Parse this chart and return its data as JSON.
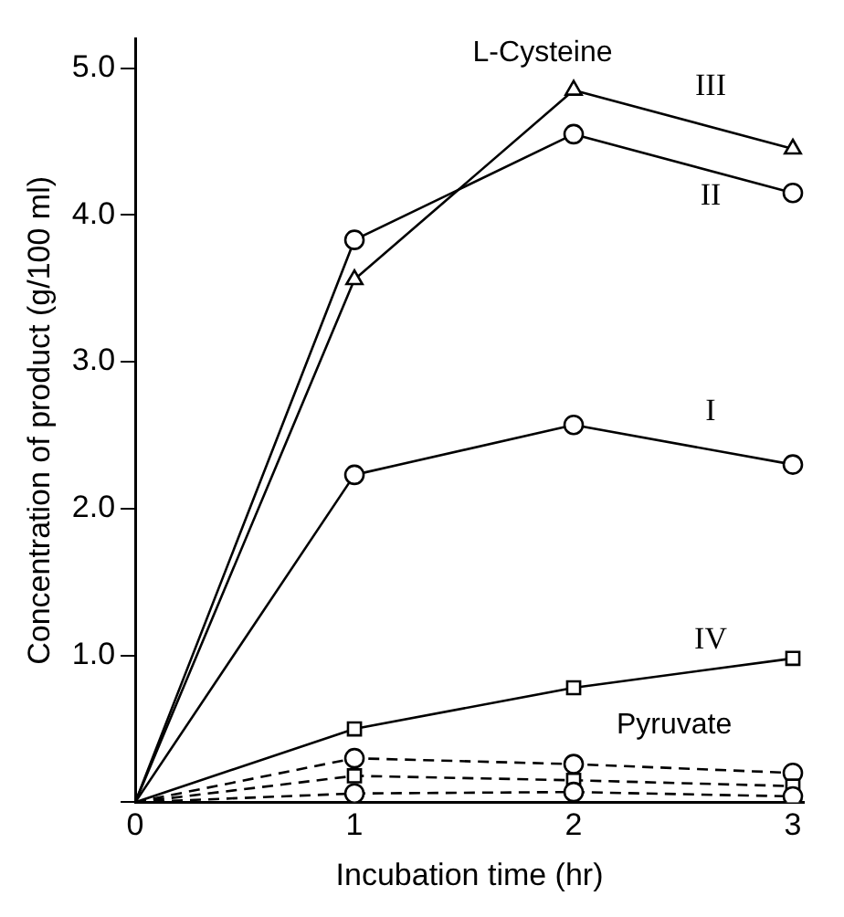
{
  "chart_data": {
    "type": "line",
    "xlabel": "Incubation time (hr)",
    "ylabel": "Concentration of product (g/100 ml)",
    "x": [
      0,
      1,
      2,
      3
    ],
    "series": [
      {
        "name": "III",
        "color": "#000000",
        "marker": "triangle",
        "line_style": "solid",
        "values": [
          0,
          3.56,
          4.85,
          4.45
        ]
      },
      {
        "name": "II",
        "color": "#000000",
        "marker": "circle",
        "line_style": "solid",
        "values": [
          0,
          3.83,
          4.55,
          4.15
        ]
      },
      {
        "name": "I",
        "color": "#000000",
        "marker": "circle",
        "line_style": "solid",
        "values": [
          0,
          2.23,
          2.57,
          2.3
        ]
      },
      {
        "name": "IV",
        "color": "#000000",
        "marker": "square",
        "line_style": "solid",
        "values": [
          0,
          0.5,
          0.78,
          0.98
        ]
      },
      {
        "color": "#000000",
        "marker": "circle",
        "line_style": "dashed",
        "values": [
          0,
          0.3,
          0.26,
          0.2
        ]
      },
      {
        "color": "#000000",
        "marker": "square",
        "line_style": "dashed",
        "values": [
          0,
          0.18,
          0.15,
          0.11
        ]
      },
      {
        "color": "#000000",
        "marker": "circle",
        "line_style": "dashed",
        "values": [
          0,
          0.06,
          0.07,
          0.04
        ]
      }
    ],
    "annotations": [
      "L-Cysteine",
      "Pyruvate"
    ],
    "xlim": [
      0,
      3.05
    ],
    "xticks": [
      0,
      1,
      2,
      3
    ],
    "ylim": [
      0,
      5.2
    ],
    "yticks": [
      {
        "value": 0,
        "label": null
      },
      {
        "value": 1,
        "label": "1.0"
      },
      {
        "value": 2,
        "label": "2.0"
      },
      {
        "value": 3,
        "label": "3.0"
      },
      {
        "value": 4,
        "label": "4.0"
      },
      {
        "value": 5,
        "label": "5.0"
      }
    ],
    "grid": false,
    "legend": false
  }
}
